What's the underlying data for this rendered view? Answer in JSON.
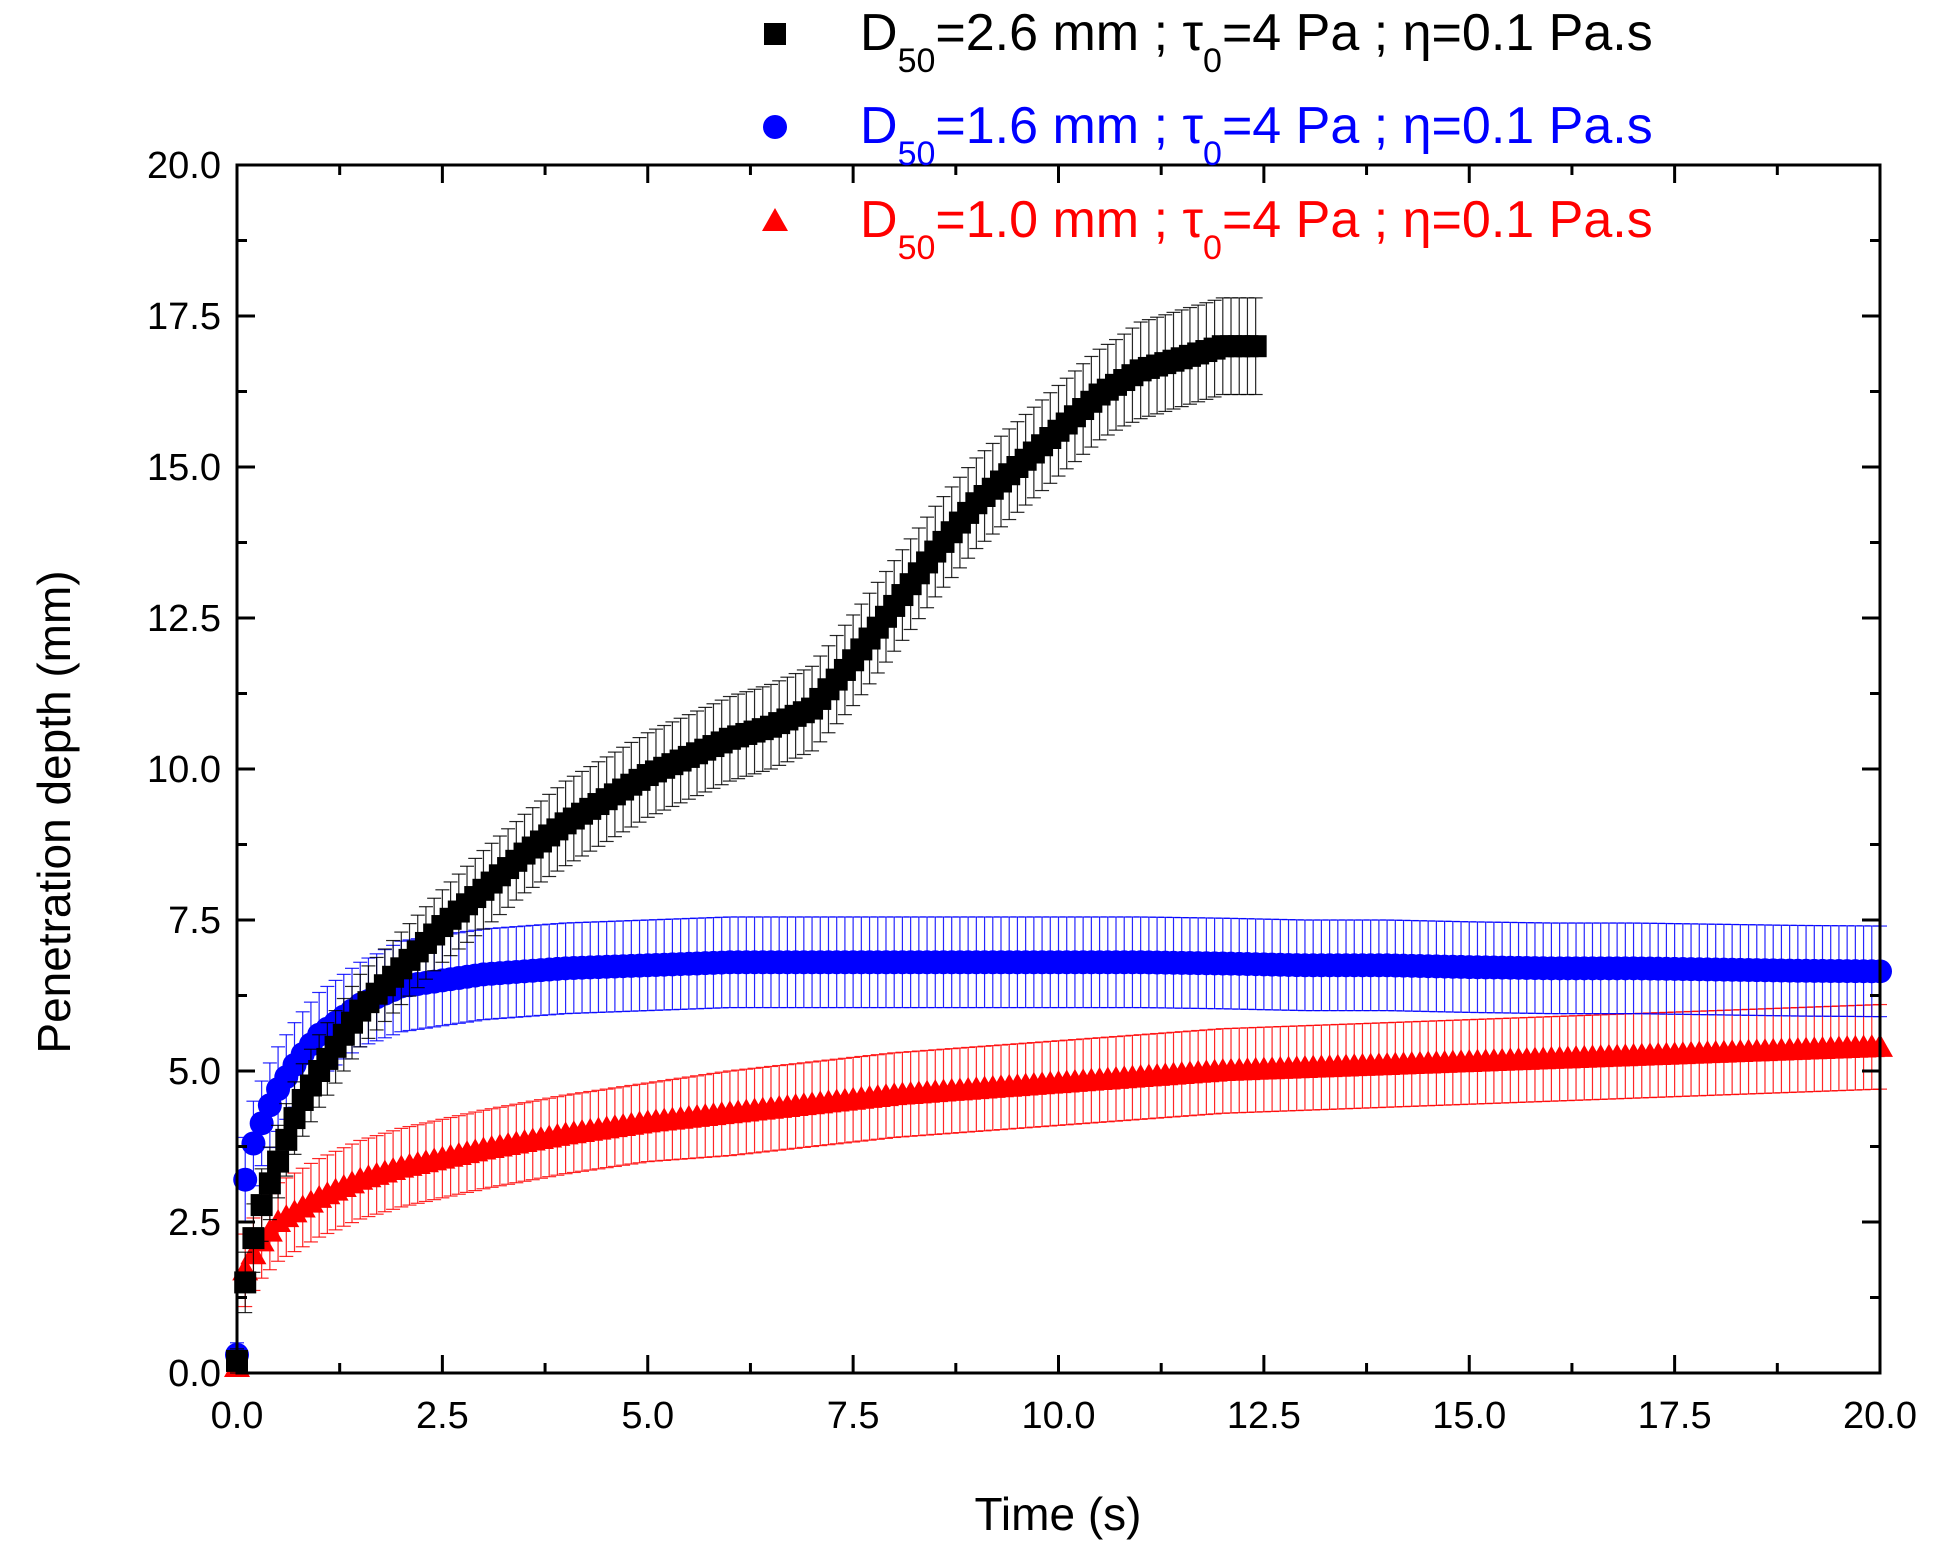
{
  "chart_data": {
    "type": "scatter",
    "xlabel": "Time (s)",
    "ylabel": "Penetration depth (mm)",
    "xlim": [
      0,
      20
    ],
    "ylim": [
      0,
      20
    ],
    "xticks": [
      "0.0",
      "2.5",
      "5.0",
      "7.5",
      "10.0",
      "12.5",
      "15.0",
      "17.5",
      "20.0"
    ],
    "yticks": [
      "0.0",
      "2.5",
      "5.0",
      "7.5",
      "10.0",
      "12.5",
      "15.0",
      "17.5",
      "20.0"
    ],
    "legend_position": "top-right",
    "series": [
      {
        "name": "D50=2.6 mm ; τ0=4 Pa ; η=0.1 Pa.s",
        "legend": {
          "a": "D",
          "sub1": "50",
          "b": "=2.6 mm ; τ",
          "sub2": "0",
          "c": "=4 Pa ; η=0.1 Pa.s"
        },
        "color": "#000000",
        "marker": "square",
        "x": [
          0,
          0.1,
          0.25,
          0.5,
          0.75,
          1.0,
          1.5,
          2.0,
          2.5,
          3.0,
          3.5,
          4.0,
          4.5,
          5.0,
          5.5,
          6.0,
          6.5,
          7.0,
          7.5,
          8.0,
          8.5,
          9.0,
          9.5,
          10.0,
          10.5,
          10.75,
          11.0,
          11.5,
          12.0,
          12.4
        ],
        "y": [
          0.2,
          1.5,
          2.6,
          3.5,
          4.4,
          5.0,
          6.0,
          6.7,
          7.4,
          8.0,
          8.6,
          9.1,
          9.5,
          9.9,
          10.2,
          10.5,
          10.7,
          11.0,
          11.8,
          12.7,
          13.6,
          14.4,
          15.0,
          15.6,
          16.2,
          16.4,
          16.6,
          16.8,
          17.0,
          17.0
        ],
        "err": [
          0.2,
          0.5,
          0.6,
          0.6,
          0.6,
          0.6,
          0.6,
          0.6,
          0.6,
          0.65,
          0.65,
          0.7,
          0.7,
          0.7,
          0.7,
          0.7,
          0.7,
          0.7,
          0.75,
          0.75,
          0.75,
          0.75,
          0.75,
          0.75,
          0.75,
          0.75,
          0.8,
          0.8,
          0.8,
          0.8
        ]
      },
      {
        "name": "D50=1.6 mm ; τ0=4 Pa ; η=0.1 Pa.s",
        "legend": {
          "a": "D",
          "sub1": "50",
          "b": "=1.6 mm ; τ",
          "sub2": "0",
          "c": "=4 Pa ; η=0.1 Pa.s"
        },
        "color": "#0000ff",
        "marker": "circle",
        "x": [
          0,
          0.05,
          0.1,
          0.2,
          0.35,
          0.5,
          0.75,
          1.0,
          1.5,
          2.0,
          2.5,
          3.0,
          4.0,
          5.0,
          6.0,
          7.0,
          8.0,
          9.0,
          10.0,
          11.0,
          12.0,
          13.0,
          14.0,
          15.0,
          16.0,
          17.0,
          18.0,
          19.0,
          20.0
        ],
        "y": [
          0.3,
          2.5,
          3.2,
          3.8,
          4.3,
          4.7,
          5.2,
          5.6,
          6.1,
          6.4,
          6.5,
          6.6,
          6.7,
          6.75,
          6.8,
          6.8,
          6.8,
          6.8,
          6.8,
          6.8,
          6.78,
          6.75,
          6.75,
          6.72,
          6.7,
          6.7,
          6.68,
          6.66,
          6.65
        ],
        "err": [
          0.2,
          0.6,
          0.7,
          0.7,
          0.7,
          0.7,
          0.7,
          0.7,
          0.7,
          0.75,
          0.75,
          0.75,
          0.75,
          0.75,
          0.75,
          0.75,
          0.75,
          0.75,
          0.75,
          0.75,
          0.75,
          0.75,
          0.75,
          0.75,
          0.75,
          0.75,
          0.75,
          0.75,
          0.75
        ]
      },
      {
        "name": "D50=1.0 mm ; τ0=4 Pa ; η=0.1 Pa.s",
        "legend": {
          "a": "D",
          "sub1": "50",
          "b": "=1.0 mm ; τ",
          "sub2": "0",
          "c": "=4 Pa ; η=0.1 Pa.s"
        },
        "color": "#ff0000",
        "marker": "triangle",
        "x": [
          0,
          0.05,
          0.1,
          0.25,
          0.5,
          1.0,
          1.5,
          2.0,
          2.5,
          3.0,
          4.0,
          5.0,
          6.0,
          7.0,
          8.0,
          9.0,
          10.0,
          11.0,
          12.0,
          13.0,
          14.0,
          15.0,
          16.0,
          17.0,
          18.0,
          19.0,
          20.0
        ],
        "y": [
          0.1,
          1.4,
          1.7,
          2.1,
          2.5,
          2.9,
          3.2,
          3.4,
          3.55,
          3.7,
          3.95,
          4.15,
          4.3,
          4.45,
          4.6,
          4.7,
          4.8,
          4.9,
          5.0,
          5.05,
          5.1,
          5.15,
          5.2,
          5.25,
          5.3,
          5.35,
          5.4
        ],
        "err": [
          0.1,
          0.5,
          0.6,
          0.6,
          0.65,
          0.65,
          0.65,
          0.65,
          0.65,
          0.65,
          0.65,
          0.65,
          0.7,
          0.7,
          0.7,
          0.7,
          0.7,
          0.7,
          0.7,
          0.7,
          0.7,
          0.7,
          0.7,
          0.7,
          0.7,
          0.7,
          0.7
        ]
      }
    ]
  }
}
